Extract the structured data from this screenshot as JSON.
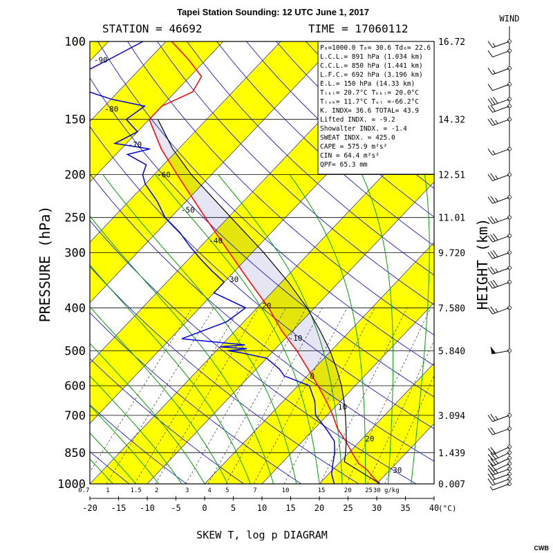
{
  "title": "Tapei Station Sounding: 12 UTC June 1, 2017",
  "station_label": "STATION = 46692",
  "time_label": "TIME = 17060112",
  "wind_label": "WIND",
  "diagram_label": "SKEW T, log p DIAGRAM",
  "credit": "CWB",
  "colors": {
    "stripe": "#ffff00",
    "temperature": "#ff0000",
    "dewpoint": "#0000dd",
    "parcel": "#000000",
    "isotherm": "#000080",
    "dry_adiabat": "#1a1ad0",
    "moist_adiabat": "#00a000",
    "mixing_ratio": "#333333"
  },
  "stats": {
    "line1": "P₀=1000.0 T₀= 30.6 Td₀= 22.6",
    "line2": "L.C.L.= 891 hPa (1.034 km)",
    "line3": "C.C.L.= 850 hPa (1.441 km)",
    "line4": "L.F.C.= 692 hPa (3.196 km)",
    "line5": "E.L.= 150 hPa (14.33 km)",
    "line6": "Tₗₖₗ= 20.7°C Tₖₖₗ= 20.0°C",
    "line7": "Tₗₒₖ= 11.7°C Tₑₗ =-66.2°C",
    "line8": "K. INDX= 36.6 TOTAL= 43.9",
    "line9": "Lifted INDX. = -9.2",
    "line10": "Showalter INDX. = -1.4",
    "line11": "SWEAT INDX. = 425.0",
    "line12": "CAPE = 575.9 m²s²",
    "line13": "CIN = 64.4 m²s²",
    "line14": "QPF= 65.3 mm"
  },
  "chart_data": {
    "type": "line",
    "title": "Tapei Station Sounding: 12 UTC June 1, 2017",
    "xlabel": "(°C)",
    "ylabel": "PRESSURE (hPa)",
    "y2label": "HEIGHT (km)",
    "xlim": [
      -20,
      40
    ],
    "ylim": [
      1000,
      100
    ],
    "y_scale": "log",
    "x_ticks": [
      "-20",
      "-15",
      "-10",
      "-5",
      "0",
      "5",
      "10",
      "15",
      "20",
      "25",
      "30",
      "35",
      "40"
    ],
    "pressure_ticks": [
      "100",
      "150",
      "200",
      "250",
      "300",
      "400",
      "500",
      "600",
      "700",
      "850",
      "1000"
    ],
    "height_labels": [
      {
        "p": 100,
        "label": "16.72"
      },
      {
        "p": 150,
        "label": "14.32"
      },
      {
        "p": 200,
        "label": "12.51"
      },
      {
        "p": 250,
        "label": "11.01"
      },
      {
        "p": 300,
        "label": "9.720"
      },
      {
        "p": 400,
        "label": "7.580"
      },
      {
        "p": 500,
        "label": "5.840"
      },
      {
        "p": 700,
        "label": "3.094"
      },
      {
        "p": 850,
        "label": "1.439"
      },
      {
        "p": 1000,
        "label": "0.007"
      }
    ],
    "isotherm_labels": [
      {
        "t": -90,
        "p": 110,
        "label": "-90"
      },
      {
        "t": -80,
        "p": 142,
        "label": "-80"
      },
      {
        "t": -70,
        "p": 171,
        "label": "-70"
      },
      {
        "t": -60,
        "p": 200,
        "label": "-60"
      },
      {
        "t": -50,
        "p": 240,
        "label": "-50"
      },
      {
        "t": -40,
        "p": 282,
        "label": "-40"
      },
      {
        "t": -30,
        "p": 345,
        "label": "30"
      },
      {
        "t": -20,
        "p": 395,
        "label": "20"
      },
      {
        "t": -10,
        "p": 468,
        "label": "-10"
      },
      {
        "t": 0,
        "p": 570,
        "label": "0"
      },
      {
        "t": 10,
        "p": 670,
        "label": "10"
      },
      {
        "t": 20,
        "p": 790,
        "label": "20"
      },
      {
        "t": 30,
        "p": 930,
        "label": "30"
      }
    ],
    "mixing_ratio_labels": [
      {
        "w": 0.7,
        "label": "0.7"
      },
      {
        "w": 1,
        "label": "1"
      },
      {
        "w": 1.5,
        "label": "1.5"
      },
      {
        "w": 2,
        "label": "2"
      },
      {
        "w": 3,
        "label": "3"
      },
      {
        "w": 4,
        "label": "4"
      },
      {
        "w": 5,
        "label": "5"
      },
      {
        "w": 7,
        "label": "7"
      },
      {
        "w": 10,
        "label": "10"
      },
      {
        "w": 15,
        "label": "15"
      },
      {
        "w": 20,
        "label": "20"
      },
      {
        "w": 25,
        "label": "25"
      },
      {
        "w": 30,
        "label": "30 g/kg"
      }
    ],
    "series": [
      {
        "key": "dewpoint",
        "values": [
          {
            "p": 1000,
            "t": 22.6
          },
          {
            "p": 950,
            "t": 20.5
          },
          {
            "p": 900,
            "t": 19.0
          },
          {
            "p": 850,
            "t": 17.5
          },
          {
            "p": 800,
            "t": 15.5
          },
          {
            "p": 750,
            "t": 12.0
          },
          {
            "p": 700,
            "t": 8.0
          },
          {
            "p": 650,
            "t": 5.5
          },
          {
            "p": 600,
            "t": 2.0
          },
          {
            "p": 570,
            "t": -4.0
          },
          {
            "p": 550,
            "t": -6.0
          },
          {
            "p": 520,
            "t": -10.0
          },
          {
            "p": 505,
            "t": -15.5
          },
          {
            "p": 500,
            "t": -18.0
          },
          {
            "p": 495,
            "t": -15.0
          },
          {
            "p": 490,
            "t": -20.0
          },
          {
            "p": 485,
            "t": -16.0
          },
          {
            "p": 470,
            "t": -28.0
          },
          {
            "p": 430,
            "t": -23.0
          },
          {
            "p": 400,
            "t": -22.0
          },
          {
            "p": 370,
            "t": -30.0
          },
          {
            "p": 350,
            "t": -30.0
          },
          {
            "p": 330,
            "t": -34.0
          },
          {
            "p": 310,
            "t": -38.0
          },
          {
            "p": 290,
            "t": -42.0
          },
          {
            "p": 270,
            "t": -46.0
          },
          {
            "p": 250,
            "t": -51.0
          },
          {
            "p": 230,
            "t": -55.0
          },
          {
            "p": 210,
            "t": -60.0
          },
          {
            "p": 200,
            "t": -62.0
          },
          {
            "p": 190,
            "t": -63.0
          },
          {
            "p": 180,
            "t": -68.0
          },
          {
            "p": 175,
            "t": -65.0
          },
          {
            "p": 170,
            "t": -72.0
          },
          {
            "p": 160,
            "t": -70.0
          },
          {
            "p": 150,
            "t": -74.0
          },
          {
            "p": 140,
            "t": -73.0
          },
          {
            "p": 135,
            "t": -80.0
          },
          {
            "p": 130,
            "t": -85.0
          },
          {
            "p": 120,
            "t": -90.0
          },
          {
            "p": 110,
            "t": -87.0
          },
          {
            "p": 100,
            "t": -84.0
          }
        ]
      },
      {
        "key": "temperature",
        "values": [
          {
            "p": 1000,
            "t": 30.6
          },
          {
            "p": 970,
            "t": 28.5
          },
          {
            "p": 930,
            "t": 26.0
          },
          {
            "p": 900,
            "t": 23.5
          },
          {
            "p": 850,
            "t": 20.5
          },
          {
            "p": 800,
            "t": 17.5
          },
          {
            "p": 750,
            "t": 14.0
          },
          {
            "p": 700,
            "t": 11.0
          },
          {
            "p": 650,
            "t": 7.5
          },
          {
            "p": 600,
            "t": 3.5
          },
          {
            "p": 550,
            "t": -1.0
          },
          {
            "p": 500,
            "t": -6.0
          },
          {
            "p": 450,
            "t": -12.0
          },
          {
            "p": 400,
            "t": -18.0
          },
          {
            "p": 350,
            "t": -25.5
          },
          {
            "p": 300,
            "t": -34.0
          },
          {
            "p": 250,
            "t": -44.0
          },
          {
            "p": 200,
            "t": -56.0
          },
          {
            "p": 175,
            "t": -63.0
          },
          {
            "p": 150,
            "t": -70.0
          },
          {
            "p": 140,
            "t": -70.0
          },
          {
            "p": 130,
            "t": -67.0
          },
          {
            "p": 120,
            "t": -68.0
          },
          {
            "p": 110,
            "t": -73.0
          },
          {
            "p": 100,
            "t": -79.0
          }
        ]
      },
      {
        "key": "parcel",
        "values": [
          {
            "p": 1000,
            "t": 30.6
          },
          {
            "p": 891,
            "t": 20.7
          },
          {
            "p": 850,
            "t": 19.4
          },
          {
            "p": 800,
            "t": 17.6
          },
          {
            "p": 750,
            "t": 15.5
          },
          {
            "p": 700,
            "t": 13.2
          },
          {
            "p": 650,
            "t": 10.6
          },
          {
            "p": 600,
            "t": 7.6
          },
          {
            "p": 550,
            "t": 4.0
          },
          {
            "p": 500,
            "t": -0.2
          },
          {
            "p": 450,
            "t": -5.3
          },
          {
            "p": 400,
            "t": -11.3
          },
          {
            "p": 350,
            "t": -18.8
          },
          {
            "p": 300,
            "t": -28.0
          },
          {
            "p": 250,
            "t": -39.5
          },
          {
            "p": 200,
            "t": -53.5
          },
          {
            "p": 175,
            "t": -61.0
          },
          {
            "p": 150,
            "t": -68.5
          }
        ]
      }
    ],
    "wind_barbs": [
      {
        "p": 1000,
        "spd": 5,
        "dir": 250
      },
      {
        "p": 975,
        "spd": 15,
        "dir": 250
      },
      {
        "p": 950,
        "spd": 20,
        "dir": 250
      },
      {
        "p": 925,
        "spd": 25,
        "dir": 250
      },
      {
        "p": 900,
        "spd": 20,
        "dir": 245
      },
      {
        "p": 875,
        "spd": 25,
        "dir": 245
      },
      {
        "p": 850,
        "spd": 30,
        "dir": 245
      },
      {
        "p": 825,
        "spd": 20,
        "dir": 245
      },
      {
        "p": 750,
        "spd": 20,
        "dir": 250
      },
      {
        "p": 700,
        "spd": 25,
        "dir": 250
      },
      {
        "p": 500,
        "spd": 50,
        "dir": 260
      },
      {
        "p": 400,
        "spd": 25,
        "dir": 250
      },
      {
        "p": 350,
        "spd": 30,
        "dir": 250
      },
      {
        "p": 325,
        "spd": 25,
        "dir": 250
      },
      {
        "p": 300,
        "spd": 30,
        "dir": 250
      },
      {
        "p": 275,
        "spd": 30,
        "dir": 250
      },
      {
        "p": 250,
        "spd": 25,
        "dir": 250
      },
      {
        "p": 225,
        "spd": 25,
        "dir": 250
      },
      {
        "p": 200,
        "spd": 25,
        "dir": 250
      },
      {
        "p": 175,
        "spd": 15,
        "dir": 250
      },
      {
        "p": 150,
        "spd": 25,
        "dir": 250
      },
      {
        "p": 140,
        "spd": 20,
        "dir": 250
      },
      {
        "p": 135,
        "spd": 30,
        "dir": 250
      },
      {
        "p": 125,
        "spd": 10,
        "dir": 250
      },
      {
        "p": 115,
        "spd": 15,
        "dir": 250
      },
      {
        "p": 105,
        "spd": 10,
        "dir": 250
      },
      {
        "p": 100,
        "spd": 15,
        "dir": 250
      }
    ]
  }
}
